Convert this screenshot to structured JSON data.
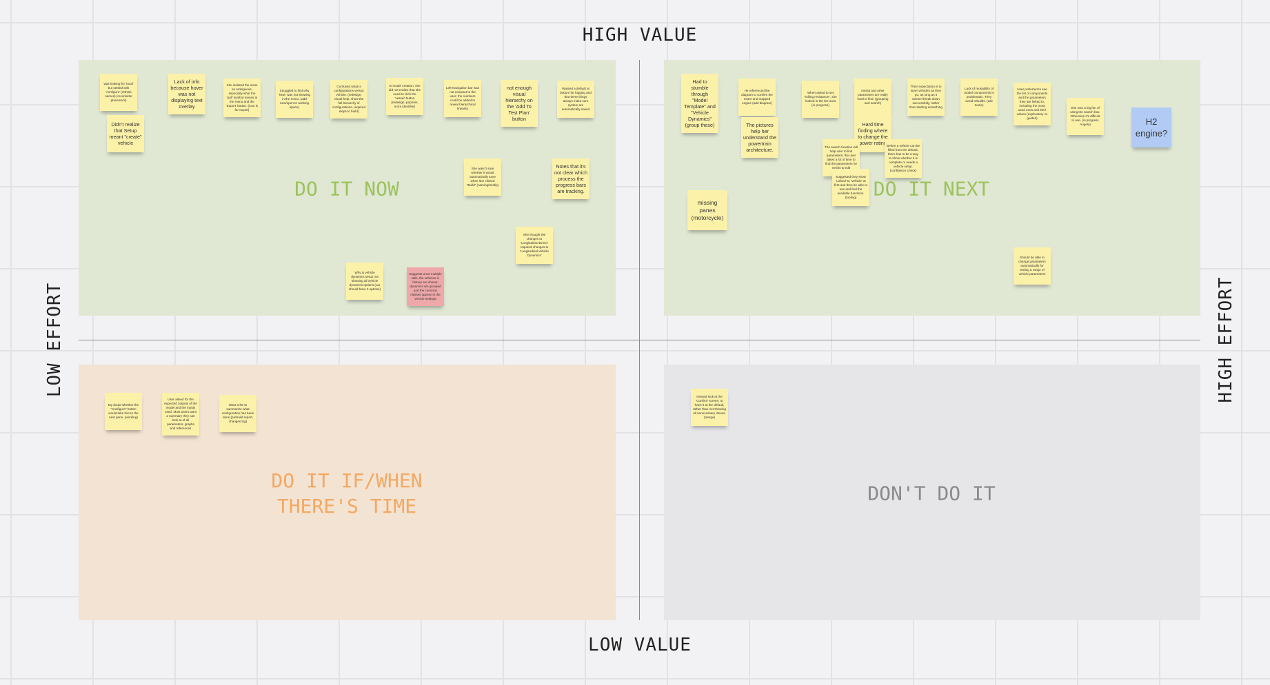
{
  "axes": {
    "top": "HIGH VALUE",
    "bottom": "LOW VALUE",
    "left": "LOW EFFORT",
    "right": "HIGH EFFORT"
  },
  "colors": {
    "do_now": "#9cc35c",
    "do_next": "#9cc35c",
    "if_time": "#f4a862",
    "dont": "#8a8a8a",
    "sticky": "#fbf1a9",
    "pink": "#eea8a9",
    "blue": "#b2cbf4"
  },
  "quadrants": {
    "do_now": "DO IT NOW",
    "do_next": "DO IT NEXT",
    "if_time": "DO IT IF/WHEN\nTHERE'S TIME",
    "dont": "DON'T DO IT"
  },
  "notes": [
    "was looking for 'local' but settled with 'configure' (rethink names) (reconsider placement)",
    "Didn't realize that Setup meant \"create\" vehicle",
    "Lack of info because hover was not displaying text overlay",
    "She isolated the icons as ambiguous, especially what the 'pull' symbol means in the menu and the 'Export' button. (icon is for export)",
    "Struggled to find why 'New' was not showing in the menu. (add new/open to working space)",
    "Confused what is configurations versus vehicle. (redesign, visual help, show the full hierarchy of configurations, required steps to build)",
    "In model creation, she did not realize that she need to click the 'vessel' button (redesign, popover, more identifier)",
    "Left Navigation bar was not compact to the user; the numbers could be added to reveal hierarchical linearity",
    "not enough visual hierarchy on the 'Add To Test Plan' button",
    "Wanted a default at bottom for logging and that there things always make sure system are automatically saved",
    "She wasn't sure whether it would automatically save when she clicked \"Build\" (naming/tooltip)",
    "Notes that it's not clear which process the progress bars are tracking.",
    "She thought the changes to 'Longitudinal Driver' required changes to 'Longitudinal Vehicle Dynamics'",
    "Why is vehicle dynamics setup not showing all vehicle dynamics options (car should have 3 options)",
    "Suggests once multiple tabs, the vehicles in history are shown; dynamics are grouped and the common classes appear in the vehicle settings",
    "Had to stumble through \"Model Template\" and \"Vehicle Dynamics\" (group these)",
    "He referenced the diagram to confirm the motor and mapped engine (add diagram)",
    "The pictures help her understand the powertrain architecture.",
    "When asked to set \"rolling resistance\", she looked in the tire area (in progress)",
    "Inertia and other parameters are really hard to find. (grouping and search)",
    "Hard time finding where to change the power rating",
    "The search function will help user to find parameters; the user takes a lot of time to find the parameters he needs to edit",
    "Suggested they show 'Linked' to 'Vehicle' at first and then be able to use and find the available functions. (tooling)",
    "Before a vehicle can be filled from the default, there has to be a way to show whether it is complete or needs a vehicle setup. (confidence check)",
    "Their expectation is to layer vehicles as they go, as long as it doesn't break down successfully, rather than starting something",
    "Lack of reusability of model components is problematic. They avoid rebuilds. (ask Suzie)",
    "User preferred to see the list of components and the parameters they are linked to, including the most used ones and their values (exploratory vs guided)",
    "She was a big fan of using the search box. Otherwise it's difficult to use. (in progress Angela)",
    "H2 engine?",
    "missing panes (motorcycle)",
    "Should be able to change parameters automatically for testing a range of vehicle parameters",
    "My doubt whether the \"Configure\" button would take him to the next pane. (wording)",
    "User asked for the expected outputs of the model and the inputs used. Most users want a summary they can look at of all parameters, graphs and references",
    "Want a list to summarize what configuration has been done (prebuild report, changes log)",
    "Instead look at the 'Confirm' screen, or have it at the default, rather than not showing all unnecessary issues. (merge)"
  ]
}
